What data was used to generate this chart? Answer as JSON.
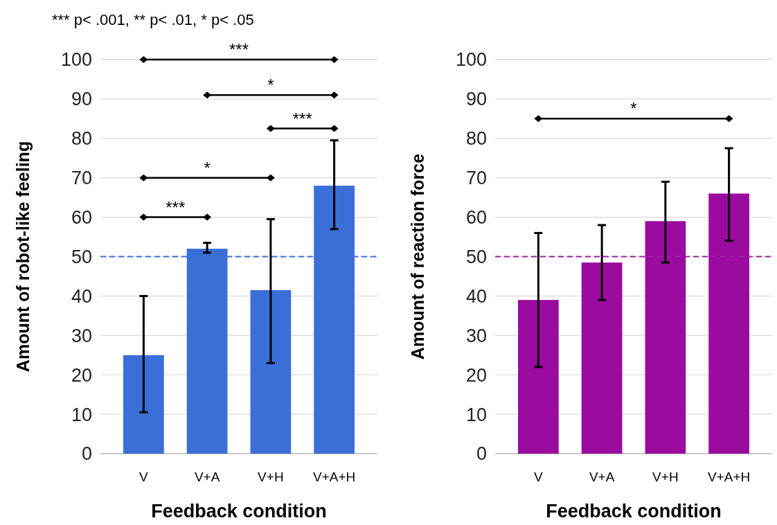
{
  "chart_data": [
    {
      "type": "bar",
      "title": "*** p< .001, ** p< .01, * p< .05",
      "xlabel": "Feedback condition",
      "ylabel": "Amount of robot-like feeling",
      "categories": [
        "V",
        "V+A",
        "V+H",
        "V+A+H"
      ],
      "values": [
        25,
        52,
        41.5,
        68
      ],
      "color": "#3a6fd8",
      "errors": [
        [
          10.5,
          40
        ],
        [
          51,
          53.5
        ],
        [
          23,
          59.5
        ],
        [
          57,
          79.5
        ]
      ],
      "ylim": [
        0,
        100
      ],
      "yticks": [
        0,
        10,
        20,
        30,
        40,
        50,
        60,
        70,
        80,
        90,
        100
      ],
      "grid": "y",
      "ref_lines": [
        {
          "axis": "y",
          "value": 50,
          "color": "#3a6fd8",
          "line_style": "dashed"
        }
      ],
      "annotations": [
        "***",
        "*",
        "***",
        "*",
        "***"
      ]
    },
    {
      "type": "bar",
      "xlabel": "Feedback condition",
      "ylabel": "Amount of reaction force",
      "categories": [
        "V",
        "V+A",
        "V+H",
        "V+A+H"
      ],
      "values": [
        39,
        48.5,
        59,
        66
      ],
      "color": "#9b0ba0",
      "errors": [
        [
          22,
          56
        ],
        [
          39,
          58
        ],
        [
          48.5,
          69
        ],
        [
          54,
          77.5
        ]
      ],
      "ylim": [
        0,
        100
      ],
      "yticks": [
        0,
        10,
        20,
        30,
        40,
        50,
        60,
        70,
        80,
        90,
        100
      ],
      "grid": "y",
      "ref_lines": [
        {
          "axis": "y",
          "value": 50,
          "color": "#a020a0",
          "line_style": "dashed"
        }
      ],
      "annotations": [
        "*"
      ]
    }
  ]
}
